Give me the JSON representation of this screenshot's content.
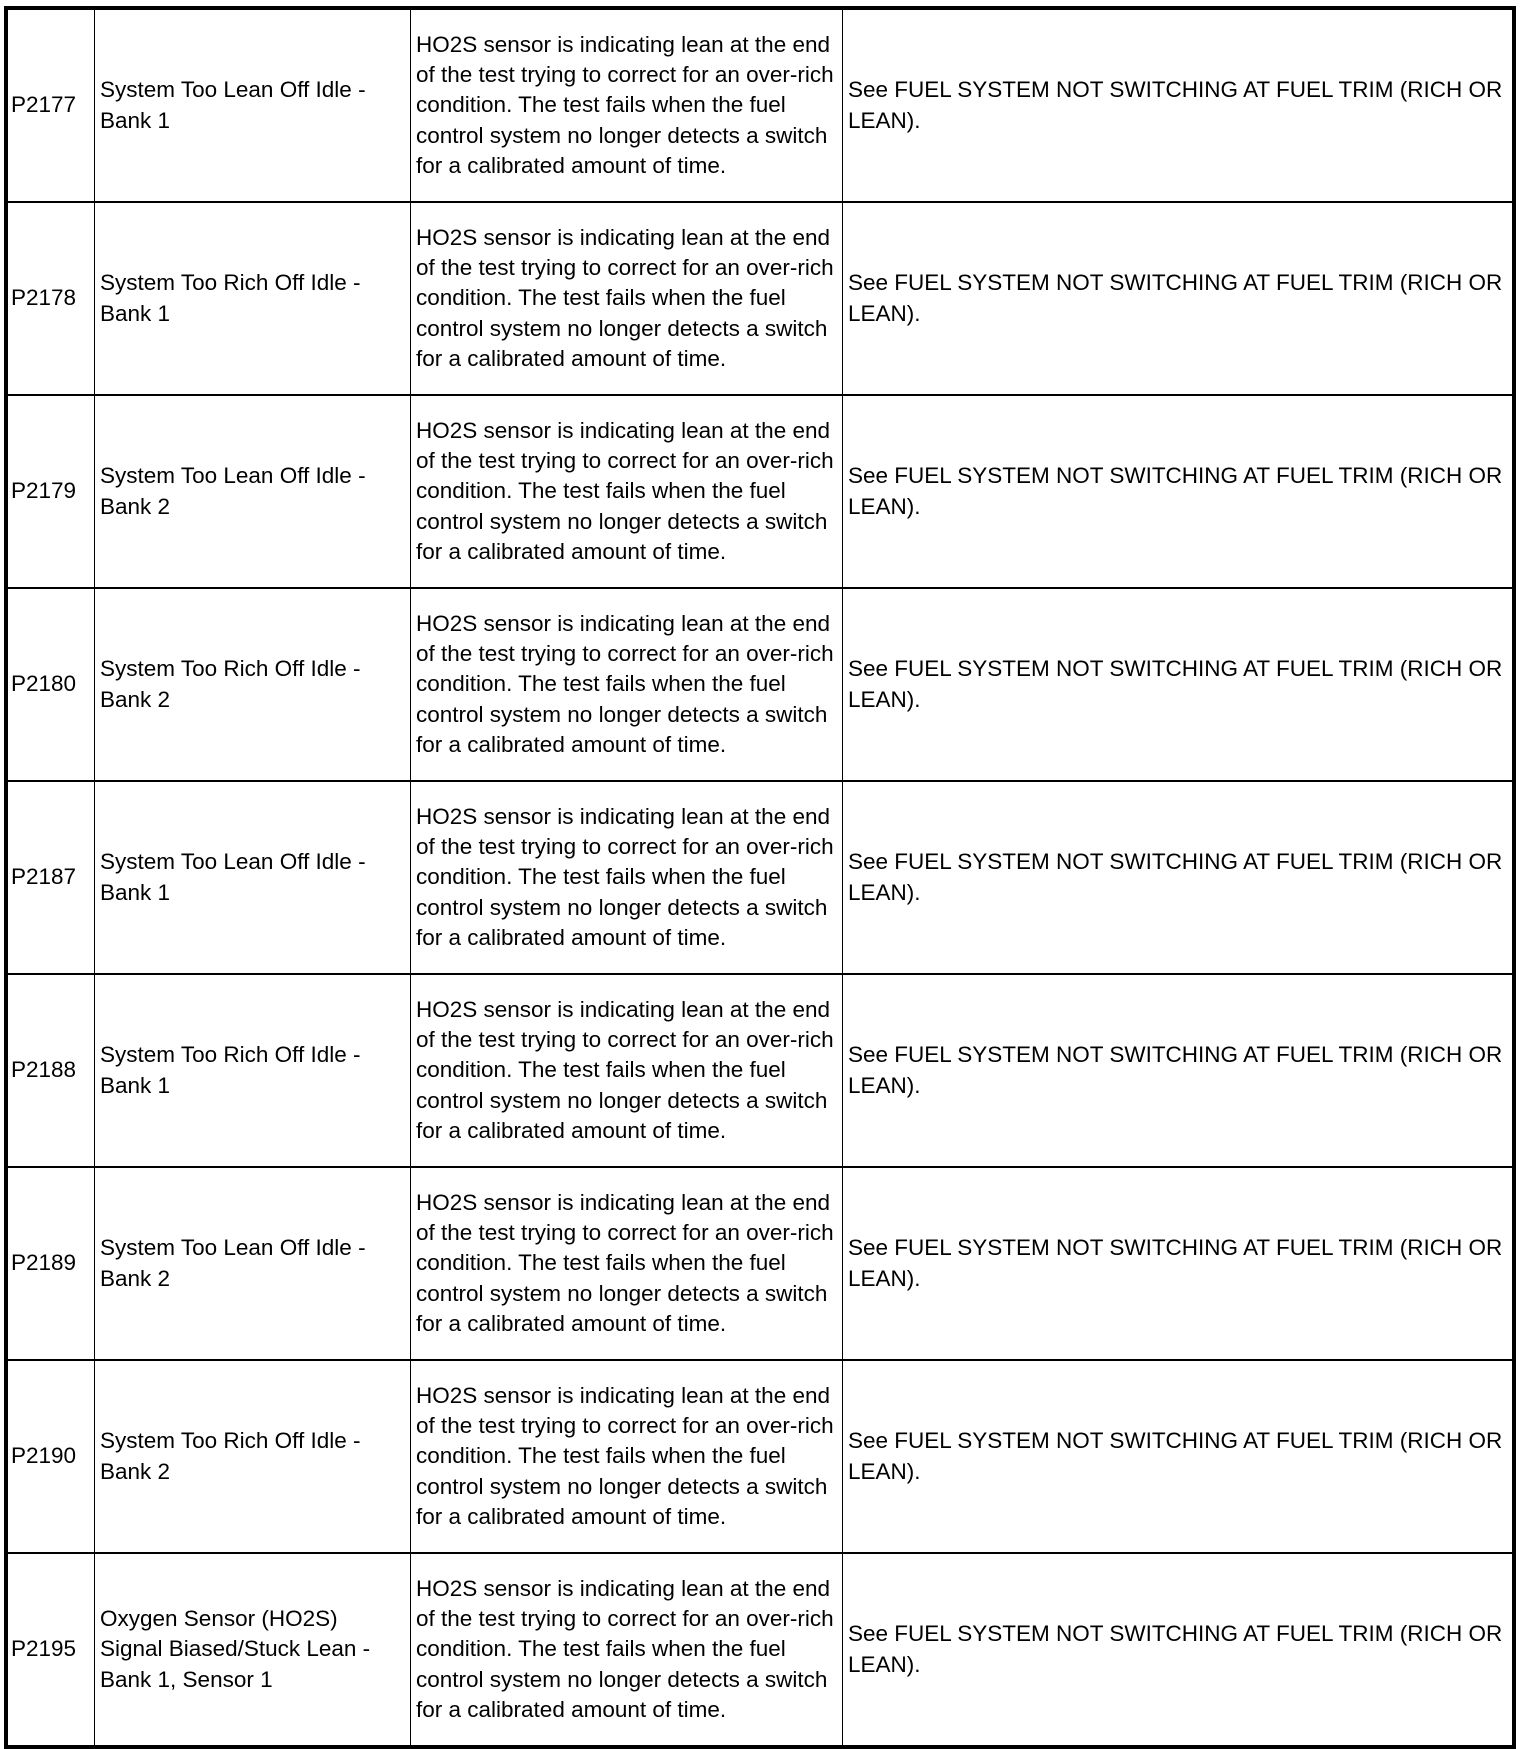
{
  "rows": [
    {
      "code": "P2177",
      "name": "System Too Lean Off Idle - Bank 1",
      "description": "HO2S sensor is indicating lean at the end of the test trying to correct for an over-rich condition. The test fails when the fuel control system no longer detects a switch for a calibrated amount of time.",
      "action": "See FUEL SYSTEM NOT SWITCHING AT FUEL TRIM (RICH OR LEAN)."
    },
    {
      "code": "P2178",
      "name": "System Too Rich Off Idle - Bank 1",
      "description": "HO2S sensor is indicating lean at the end of the test trying to correct for an over-rich condition. The test fails when the fuel control system no longer detects a switch for a calibrated amount of time.",
      "action": "See FUEL SYSTEM NOT SWITCHING AT FUEL TRIM (RICH OR LEAN)."
    },
    {
      "code": "P2179",
      "name": "System Too Lean Off Idle - Bank 2",
      "description": "HO2S sensor is indicating lean at the end of the test trying to correct for an over-rich condition. The test fails when the fuel control system no longer detects a switch for a calibrated amount of time.",
      "action": "See FUEL SYSTEM NOT SWITCHING AT FUEL TRIM (RICH OR LEAN)."
    },
    {
      "code": "P2180",
      "name": "System Too Rich Off Idle - Bank 2",
      "description": "HO2S sensor is indicating lean at the end of the test trying to correct for an over-rich condition. The test fails when the fuel control system no longer detects a switch for a calibrated amount of time.",
      "action": "See FUEL SYSTEM NOT SWITCHING AT FUEL TRIM (RICH OR LEAN)."
    },
    {
      "code": "P2187",
      "name": "System Too Lean Off Idle - Bank 1",
      "description": "HO2S sensor is indicating lean at the end of the test trying to correct for an over-rich condition. The test fails when the fuel control system no longer detects a switch for a calibrated amount of time.",
      "action": "See FUEL SYSTEM NOT SWITCHING AT FUEL TRIM (RICH OR LEAN)."
    },
    {
      "code": "P2188",
      "name": "System Too Rich Off Idle - Bank 1",
      "description": "HO2S sensor is indicating lean at the end of the test trying to correct for an over-rich condition. The test fails when the fuel control system no longer detects a switch for a calibrated amount of time.",
      "action": "See FUEL SYSTEM NOT SWITCHING AT FUEL TRIM (RICH OR LEAN)."
    },
    {
      "code": "P2189",
      "name": "System Too Lean Off Idle - Bank 2",
      "description": "HO2S sensor is indicating lean at the end of the test trying to correct for an over-rich condition. The test fails when the fuel control system no longer detects a switch for a calibrated amount of time.",
      "action": "See FUEL SYSTEM NOT SWITCHING AT FUEL TRIM (RICH OR LEAN)."
    },
    {
      "code": "P2190",
      "name": "System Too Rich Off Idle - Bank 2",
      "description": "HO2S sensor is indicating lean at the end of the test trying to correct for an over-rich condition. The test fails when the fuel control system no longer detects a switch for a calibrated amount of time.",
      "action": "See FUEL SYSTEM NOT SWITCHING AT FUEL TRIM (RICH OR LEAN)."
    },
    {
      "code": "P2195",
      "name": "Oxygen Sensor (HO2S) Signal Biased/Stuck Lean - Bank 1, Sensor 1",
      "description": "HO2S sensor is indicating lean at the end of the test trying to correct for an over-rich condition. The test fails when the fuel control system no longer detects a switch for a calibrated amount of time.",
      "action": "See FUEL SYSTEM NOT SWITCHING AT FUEL TRIM (RICH OR LEAN)."
    }
  ]
}
